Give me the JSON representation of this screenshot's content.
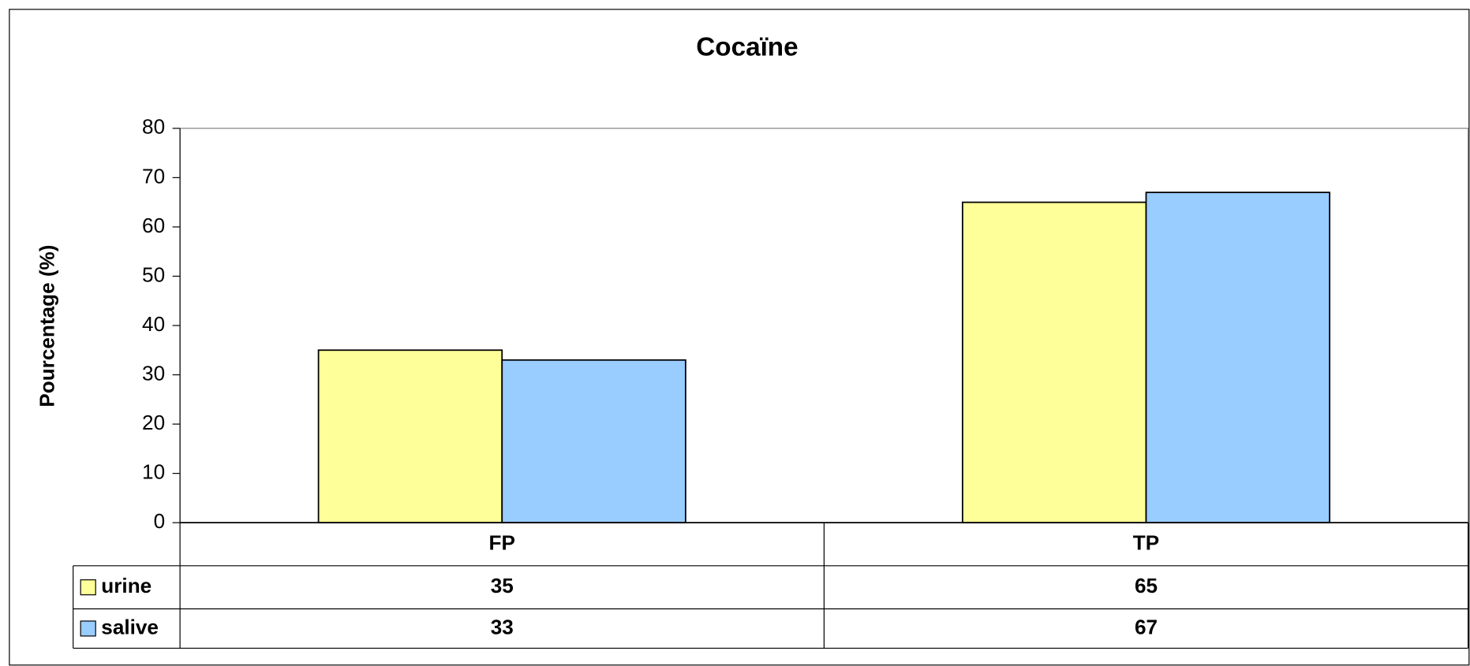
{
  "chart_data": {
    "type": "bar",
    "title": "Cocaïne",
    "y_label": "Pourcentage (%)",
    "categories": [
      "FP",
      "TP"
    ],
    "series": [
      {
        "name": "urine",
        "color": "#ffff99",
        "values": [
          35,
          65
        ]
      },
      {
        "name": "salive",
        "color": "#99ccff",
        "values": [
          33,
          67
        ]
      }
    ],
    "ylim": [
      0,
      80
    ],
    "yticks": [
      0,
      10,
      20,
      30,
      40,
      50,
      60,
      70,
      80
    ],
    "data_table": true
  }
}
